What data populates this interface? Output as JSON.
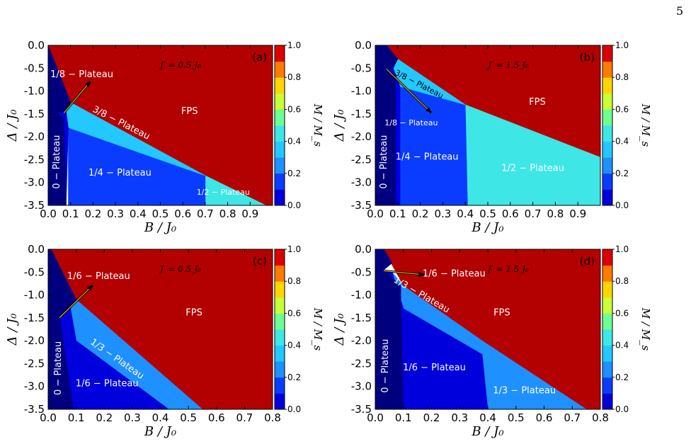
{
  "page_number": "5",
  "colors": {
    "levels": [
      "#00007f",
      "#0000dd",
      "#0a3cff",
      "#1e90ff",
      "#22c8ff",
      "#3ee6e6",
      "#6eff91",
      "#c8ff37",
      "#ffd700",
      "#ff7a00",
      "#dd0000",
      "#b30000"
    ],
    "fps": "#b30000",
    "arrow": "#000000"
  },
  "colorbar": {
    "label": "M / M_s",
    "ticks": [
      "0.0",
      "0.2",
      "0.4",
      "0.6",
      "0.8",
      "1.0"
    ]
  },
  "chart_data": [
    {
      "type": "heatmap",
      "panel_label": "(a)",
      "coupling": "J′ = 0.5 J₀",
      "xlabel": "B / J₀",
      "ylabel": "Δ / J₀",
      "xlim": [
        0.0,
        1.0
      ],
      "ylim": [
        -3.5,
        0.0
      ],
      "xticks": [
        "0.0",
        "0.1",
        "0.2",
        "0.3",
        "0.4",
        "0.5",
        "0.6",
        "0.7",
        "0.8",
        "0.9"
      ],
      "yticks": [
        "0.0",
        "-0.5",
        "-1.0",
        "-1.5",
        "-2.0",
        "-2.5",
        "-3.0",
        "-3.5"
      ],
      "regions": [
        {
          "name": "FPS",
          "M": 1.0,
          "poly": [
            [
              0,
              0
            ],
            [
              1,
              0
            ],
            [
              1,
              -3.5
            ],
            [
              0.97,
              -3.5
            ],
            [
              0.7,
              -2.85
            ],
            [
              0.1,
              -1.25
            ],
            [
              0,
              0
            ]
          ]
        },
        {
          "name": "1/2 − Plateau",
          "M": 0.5,
          "poly": [
            [
              0.7,
              -2.85
            ],
            [
              0.97,
              -3.5
            ],
            [
              0.7,
              -3.5
            ]
          ]
        },
        {
          "name": "1/4 − Plateau",
          "M": 0.25,
          "poly": [
            [
              0.09,
              -1.8
            ],
            [
              0.7,
              -2.85
            ],
            [
              0.7,
              -3.5
            ],
            [
              0.09,
              -3.5
            ]
          ]
        },
        {
          "name": "3/8 − Plateau",
          "M": 0.375,
          "poly": [
            [
              0.08,
              -1.45
            ],
            [
              0.1,
              -1.25
            ],
            [
              0.7,
              -2.85
            ],
            [
              0.09,
              -1.8
            ]
          ]
        },
        {
          "name": "1/8 − Plateau",
          "M": 0.125,
          "poly": [
            [
              0.04,
              -1.48
            ],
            [
              0.08,
              -1.45
            ],
            [
              0.09,
              -1.8
            ],
            [
              0.08,
              -3.5
            ],
            [
              0.07,
              -1.6
            ]
          ]
        },
        {
          "name": "0 − Plateau",
          "M": 0.0,
          "poly": [
            [
              0,
              0
            ],
            [
              0.1,
              -1.25
            ],
            [
              0.08,
              -1.45
            ],
            [
              0.04,
              -1.48
            ],
            [
              0.07,
              -1.6
            ],
            [
              0.08,
              -3.5
            ],
            [
              0,
              -3.5
            ]
          ]
        }
      ],
      "labels": [
        {
          "text": "1/8 − Plateau",
          "x": 0.15,
          "y": -0.7
        },
        {
          "text": "3/8 − Plateau",
          "x": 0.32,
          "y": -1.75,
          "rotate": 27
        },
        {
          "text": "FPS",
          "x": 0.63,
          "y": -1.5
        },
        {
          "text": "0 − Plateau",
          "x": 0.05,
          "y": -2.55,
          "rotate": -90
        },
        {
          "text": "1/4 − Plateau",
          "x": 0.32,
          "y": -2.85
        },
        {
          "text": "1/2 − Plateau",
          "x": 0.78,
          "y": -3.27,
          "small": true
        }
      ],
      "arrow": {
        "from": [
          0.07,
          -1.48
        ],
        "to": [
          0.19,
          -0.78
        ]
      }
    },
    {
      "type": "heatmap",
      "panel_label": "(b)",
      "coupling": "J′ = 1.5 J₀",
      "xlabel": "B / J₀",
      "ylabel": "Δ / J₀",
      "xlim": [
        0.0,
        1.0
      ],
      "ylim": [
        -3.5,
        0.0
      ],
      "xticks": [
        "0.0",
        "0.1",
        "0.2",
        "0.3",
        "0.4",
        "0.5",
        "0.6",
        "0.7",
        "0.8",
        "0.9"
      ],
      "yticks": [
        "0.0",
        "-0.5",
        "-1.0",
        "-1.5",
        "-2.0",
        "-2.5",
        "-3.0",
        "-3.5"
      ],
      "regions": [
        {
          "name": "FPS",
          "M": 1.0,
          "poly": [
            [
              0,
              0
            ],
            [
              1,
              0
            ],
            [
              1,
              -2.45
            ],
            [
              0.4,
              -1.3
            ],
            [
              0.1,
              -0.3
            ],
            [
              0.05,
              0
            ]
          ]
        },
        {
          "name": "1/2 − Plateau",
          "M": 0.5,
          "poly": [
            [
              0.4,
              -1.3
            ],
            [
              1,
              -2.45
            ],
            [
              1,
              -3.5
            ],
            [
              0.41,
              -3.5
            ]
          ]
        },
        {
          "name": "1/4 − Plateau",
          "M": 0.25,
          "poly": [
            [
              0.11,
              -0.9
            ],
            [
              0.4,
              -1.3
            ],
            [
              0.41,
              -3.5
            ],
            [
              0.11,
              -3.5
            ]
          ]
        },
        {
          "name": "3/8 − Plateau",
          "M": 0.375,
          "poly": [
            [
              0.08,
              -0.5
            ],
            [
              0.1,
              -0.3
            ],
            [
              0.4,
              -1.3
            ],
            [
              0.11,
              -0.9
            ]
          ]
        },
        {
          "name": "1/8 − Plateau",
          "M": 0.125,
          "poly": [
            [
              0.04,
              -0.5
            ],
            [
              0.08,
              -0.5
            ],
            [
              0.11,
              -0.9
            ],
            [
              0.11,
              -3.5
            ],
            [
              0.09,
              -3.5
            ],
            [
              0.09,
              -0.7
            ]
          ]
        },
        {
          "name": "0 − Plateau",
          "M": 0.0,
          "poly": [
            [
              0,
              0
            ],
            [
              0.05,
              0
            ],
            [
              0.1,
              -0.3
            ],
            [
              0.08,
              -0.5
            ],
            [
              0.04,
              -0.5
            ],
            [
              0.09,
              -0.7
            ],
            [
              0.09,
              -3.5
            ],
            [
              0,
              -3.5
            ]
          ]
        }
      ],
      "labels": [
        {
          "text": "3/8 − Plateau",
          "x": 0.19,
          "y": -0.9,
          "rotate": 27,
          "small": true,
          "dark": true
        },
        {
          "text": "FPS",
          "x": 0.72,
          "y": -1.3
        },
        {
          "text": "1/8 − Plateau",
          "x": 0.16,
          "y": -1.75,
          "small": true
        },
        {
          "text": "0 − Plateau",
          "x": 0.05,
          "y": -2.55,
          "rotate": -90
        },
        {
          "text": "1/4 − Plateau",
          "x": 0.23,
          "y": -2.5
        },
        {
          "text": "1/2 − Plateau",
          "x": 0.7,
          "y": -2.75
        }
      ],
      "arrow": {
        "from": [
          0.05,
          -0.52
        ],
        "to": [
          0.25,
          -1.48
        ]
      }
    },
    {
      "type": "heatmap",
      "panel_label": "(c)",
      "coupling": "J′ = 0.5 J₀",
      "xlabel": "B / J₀",
      "ylabel": "Δ / J₀",
      "xlim": [
        0.0,
        0.8
      ],
      "ylim": [
        -3.5,
        0.0
      ],
      "xticks": [
        "0.0",
        "0.1",
        "0.2",
        "0.3",
        "0.4",
        "0.5",
        "0.6",
        "0.7",
        "0.8"
      ],
      "yticks": [
        "0.0",
        "-0.5",
        "-1.0",
        "-1.5",
        "-2.0",
        "-2.5",
        "-3.0",
        "-3.5"
      ],
      "regions": [
        {
          "name": "FPS",
          "M": 1.0,
          "poly": [
            [
              0,
              0
            ],
            [
              0.8,
              0
            ],
            [
              0.8,
              -3.5
            ],
            [
              0.55,
              -3.5
            ],
            [
              0.1,
              -1.1
            ],
            [
              0.01,
              0
            ]
          ]
        },
        {
          "name": "1/3 − Plateau",
          "M": 0.333,
          "poly": [
            [
              0.08,
              -1.3
            ],
            [
              0.1,
              -1.1
            ],
            [
              0.55,
              -3.5
            ],
            [
              0.43,
              -3.5
            ],
            [
              0.1,
              -2.0
            ]
          ]
        },
        {
          "name": "1/6 − Plateau",
          "M": 0.167,
          "poly": [
            [
              0.04,
              -1.45
            ],
            [
              0.08,
              -1.3
            ],
            [
              0.1,
              -2.0
            ],
            [
              0.43,
              -3.5
            ],
            [
              0.09,
              -3.5
            ]
          ]
        },
        {
          "name": "0 − Plateau",
          "M": 0.0,
          "poly": [
            [
              0,
              0
            ],
            [
              0.01,
              0
            ],
            [
              0.1,
              -1.1
            ],
            [
              0.08,
              -1.3
            ],
            [
              0.04,
              -1.45
            ],
            [
              0.09,
              -3.5
            ],
            [
              0,
              -3.5
            ]
          ]
        }
      ],
      "labels": [
        {
          "text": "1/6 − Plateau",
          "x": 0.18,
          "y": -0.65
        },
        {
          "text": "1/3 − Plateau",
          "x": 0.24,
          "y": -2.45,
          "rotate": 35
        },
        {
          "text": "FPS",
          "x": 0.52,
          "y": -1.45
        },
        {
          "text": "0 − Plateau",
          "x": 0.045,
          "y": -2.6,
          "rotate": -90
        },
        {
          "text": "1/6 − Plateau",
          "x": 0.21,
          "y": -3.0
        }
      ],
      "arrow": {
        "from": [
          0.04,
          -1.5
        ],
        "to": [
          0.16,
          -0.78
        ]
      }
    },
    {
      "type": "heatmap",
      "panel_label": "(d)",
      "coupling": "J′ = 1.5 J₀",
      "xlabel": "B / J₀",
      "ylabel": "Δ / J₀",
      "xlim": [
        0.0,
        0.8
      ],
      "ylim": [
        -3.5,
        0.0
      ],
      "xticks": [
        "0.0",
        "0.1",
        "0.2",
        "0.3",
        "0.4",
        "0.5",
        "0.6",
        "0.7",
        "0.8"
      ],
      "yticks": [
        "0.0",
        "-0.5",
        "-1.0",
        "-1.5",
        "-2.0",
        "-2.5",
        "-3.0",
        "-3.5"
      ],
      "regions": [
        {
          "name": "FPS",
          "M": 1.0,
          "poly": [
            [
              0,
              0
            ],
            [
              0.8,
              0
            ],
            [
              0.8,
              -3.5
            ],
            [
              0.75,
              -3.5
            ],
            [
              0.38,
              -2.0
            ],
            [
              0.1,
              -0.8
            ],
            [
              0.03,
              0
            ]
          ]
        },
        {
          "name": "1/3 − Plateau",
          "M": 0.333,
          "poly": [
            [
              0.06,
              -0.5
            ],
            [
              0.1,
              -0.8
            ],
            [
              0.38,
              -2.0
            ],
            [
              0.75,
              -3.5
            ],
            [
              0.4,
              -3.5
            ],
            [
              0.38,
              -2.3
            ],
            [
              0.1,
              -1.3
            ]
          ]
        },
        {
          "name": "1/6 − Plateau",
          "M": 0.167,
          "poly": [
            [
              0.03,
              -0.45
            ],
            [
              0.06,
              -0.5
            ],
            [
              0.1,
              -1.3
            ],
            [
              0.38,
              -2.3
            ],
            [
              0.4,
              -3.5
            ],
            [
              0.1,
              -3.5
            ],
            [
              0.09,
              -0.8
            ]
          ]
        },
        {
          "name": "0 − Plateau",
          "M": 0.0,
          "poly": [
            [
              0,
              0
            ],
            [
              0.03,
              0
            ],
            [
              0.06,
              -0.3
            ],
            [
              0.03,
              -0.45
            ],
            [
              0.09,
              -0.8
            ],
            [
              0.1,
              -3.5
            ],
            [
              0,
              -3.5
            ]
          ]
        }
      ],
      "labels": [
        {
          "text": "1/6 − Plateau",
          "x": 0.28,
          "y": -0.6
        },
        {
          "text": "1/3 − Plateau",
          "x": 0.16,
          "y": -1.05,
          "rotate": 30
        },
        {
          "text": "FPS",
          "x": 0.45,
          "y": -1.45
        },
        {
          "text": "0 − Plateau",
          "x": 0.045,
          "y": -2.55,
          "rotate": -90
        },
        {
          "text": "1/6 − Plateau",
          "x": 0.21,
          "y": -2.65
        },
        {
          "text": "1/3 − Plateau",
          "x": 0.53,
          "y": -3.15
        }
      ],
      "arrow": {
        "from": [
          0.03,
          -0.47
        ],
        "to": [
          0.175,
          -0.56
        ]
      }
    }
  ]
}
